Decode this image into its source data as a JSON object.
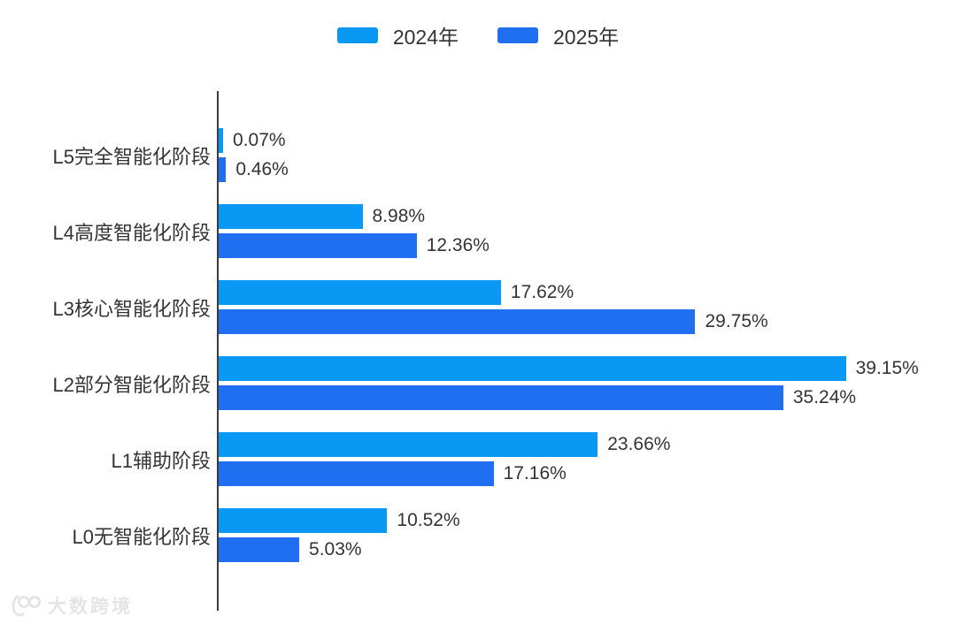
{
  "legend": {
    "items": [
      {
        "label": "2024年",
        "color": "#0999F5"
      },
      {
        "label": "2025年",
        "color": "#1F6FF0"
      }
    ]
  },
  "watermark": {
    "text": "大数跨境",
    "logo": "100-glasses-logo"
  },
  "chart_data": {
    "type": "bar",
    "orientation": "horizontal",
    "title": "",
    "xlabel": "",
    "ylabel": "",
    "categories": [
      "L5完全智能化阶段",
      "L4高度智能化阶段",
      "L3核心智能化阶段",
      "L2部分智能化阶段",
      "L1辅助阶段",
      "L0无智能化阶段"
    ],
    "series": [
      {
        "name": "2024年",
        "color": "#0999F5",
        "values": [
          0.07,
          8.98,
          17.62,
          39.15,
          23.66,
          10.52
        ]
      },
      {
        "name": "2025年",
        "color": "#1F6FF0",
        "values": [
          0.46,
          12.36,
          29.75,
          35.24,
          17.16,
          5.03
        ]
      }
    ],
    "value_suffix": "%",
    "value_labels": true,
    "xlim": [
      0,
      42
    ],
    "grid": false,
    "legend_position": "top"
  }
}
